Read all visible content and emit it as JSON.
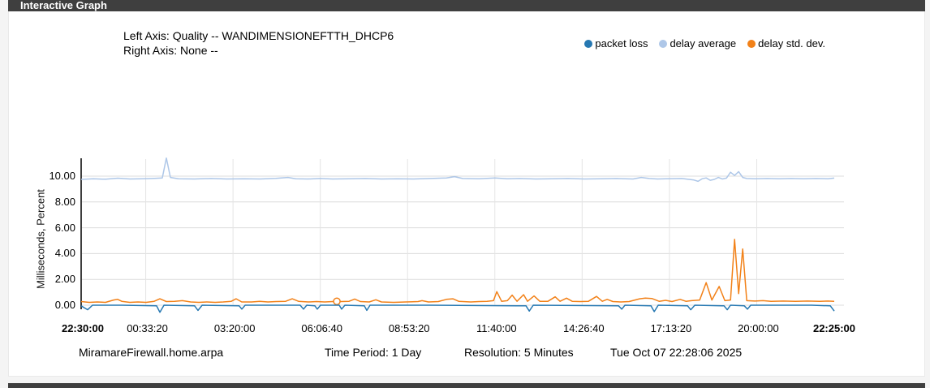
{
  "panel": {
    "title": "Interactive Graph"
  },
  "graph_header": {
    "left_axis": "Left Axis: Quality -- WANDIMENSIONEFTTH_DHCP6",
    "right_axis": "Right Axis: None --"
  },
  "legend": [
    {
      "label": "packet loss",
      "color": "#2678b2"
    },
    {
      "label": "delay average",
      "color": "#aec7e8"
    },
    {
      "label": "delay std. dev.",
      "color": "#f28118"
    }
  ],
  "footer": {
    "hostname": "MiramareFirewall.home.arpa",
    "time_period": "Time Period: 1 Day",
    "resolution": "Resolution: 5 Minutes",
    "timestamp": "Tue Oct 07 22:28:06 2025"
  },
  "chart_data": {
    "type": "line",
    "title": "Quality -- WANDIMENSIONEFTTH_DHCP6",
    "xlabel": "",
    "ylabel": "Milliseconds, Percent",
    "ylim": [
      0,
      11.3
    ],
    "grid": true,
    "legend_position": "top-right",
    "x_unit": "seconds since 22:30:00",
    "x_span_seconds": 86286,
    "yticks": [
      {
        "label": "0.00",
        "v": 0
      },
      {
        "label": "2.00",
        "v": 2
      },
      {
        "label": "4.00",
        "v": 4
      },
      {
        "label": "6.00",
        "v": 6
      },
      {
        "label": "8.00",
        "v": 8
      },
      {
        "label": "10.00",
        "v": 10
      }
    ],
    "xticks": [
      {
        "label": "22:30:00",
        "t": 0,
        "bold": true
      },
      {
        "label": "00:33:20",
        "t": 7400,
        "bold": false
      },
      {
        "label": "03:20:00",
        "t": 17400,
        "bold": false
      },
      {
        "label": "06:06:40",
        "t": 27400,
        "bold": false
      },
      {
        "label": "08:53:20",
        "t": 37400,
        "bold": false
      },
      {
        "label": "11:40:00",
        "t": 47400,
        "bold": false
      },
      {
        "label": "14:26:40",
        "t": 57400,
        "bold": false
      },
      {
        "label": "17:13:20",
        "t": 67400,
        "bold": false
      },
      {
        "label": "20:00:00",
        "t": 77400,
        "bold": false
      },
      {
        "label": "22:25:00",
        "t": 86100,
        "bold": true
      }
    ],
    "series": [
      {
        "name": "delay average",
        "color": "#aec7e8",
        "unit": "ms",
        "points": [
          [
            0,
            9.75
          ],
          [
            1400,
            9.8
          ],
          [
            2800,
            9.76
          ],
          [
            4200,
            9.84
          ],
          [
            5600,
            9.78
          ],
          [
            7000,
            9.8
          ],
          [
            8400,
            9.83
          ],
          [
            9300,
            9.86
          ],
          [
            9760,
            11.4
          ],
          [
            10230,
            9.9
          ],
          [
            11160,
            9.8
          ],
          [
            13000,
            9.78
          ],
          [
            14900,
            9.82
          ],
          [
            16700,
            9.78
          ],
          [
            18600,
            9.8
          ],
          [
            20500,
            9.78
          ],
          [
            22300,
            9.83
          ],
          [
            23700,
            9.9
          ],
          [
            24600,
            9.8
          ],
          [
            26000,
            9.78
          ],
          [
            27400,
            9.82
          ],
          [
            28800,
            9.78
          ],
          [
            30700,
            9.8
          ],
          [
            32550,
            9.82
          ],
          [
            34400,
            9.78
          ],
          [
            36270,
            9.8
          ],
          [
            38130,
            9.78
          ],
          [
            40000,
            9.82
          ],
          [
            41850,
            9.86
          ],
          [
            42780,
            9.96
          ],
          [
            43710,
            9.82
          ],
          [
            45570,
            9.8
          ],
          [
            47430,
            9.86
          ],
          [
            48825,
            9.8
          ],
          [
            50220,
            9.82
          ],
          [
            52080,
            9.78
          ],
          [
            53940,
            9.8
          ],
          [
            55800,
            9.82
          ],
          [
            57660,
            9.78
          ],
          [
            59520,
            9.8
          ],
          [
            61380,
            9.82
          ],
          [
            63240,
            9.78
          ],
          [
            64170,
            9.9
          ],
          [
            65100,
            9.82
          ],
          [
            66030,
            9.78
          ],
          [
            66960,
            9.8
          ],
          [
            68820,
            9.82
          ],
          [
            70215,
            9.7
          ],
          [
            70680,
            9.6
          ],
          [
            71145,
            9.8
          ],
          [
            71610,
            9.86
          ],
          [
            72075,
            9.68
          ],
          [
            72540,
            9.75
          ],
          [
            73005,
            9.9
          ],
          [
            73470,
            9.78
          ],
          [
            73935,
            9.85
          ],
          [
            74400,
            10.3
          ],
          [
            74865,
            10.05
          ],
          [
            75330,
            10.35
          ],
          [
            75795,
            9.9
          ],
          [
            76260,
            9.82
          ],
          [
            77190,
            9.8
          ],
          [
            78585,
            9.82
          ],
          [
            79980,
            9.8
          ],
          [
            81375,
            9.82
          ],
          [
            82770,
            9.8
          ],
          [
            84165,
            9.82
          ],
          [
            85560,
            9.8
          ],
          [
            86286,
            9.85
          ]
        ]
      },
      {
        "name": "delay std. dev.",
        "color": "#f28118",
        "unit": "ms",
        "marker": {
          "t": 29295,
          "v": 0.3
        },
        "points": [
          [
            0,
            0.28
          ],
          [
            930,
            0.22
          ],
          [
            1860,
            0.25
          ],
          [
            2790,
            0.22
          ],
          [
            3720,
            0.4
          ],
          [
            4185,
            0.45
          ],
          [
            4650,
            0.3
          ],
          [
            5580,
            0.22
          ],
          [
            6510,
            0.25
          ],
          [
            7440,
            0.22
          ],
          [
            8370,
            0.3
          ],
          [
            9020,
            0.5
          ],
          [
            9765,
            0.28
          ],
          [
            10700,
            0.3
          ],
          [
            11600,
            0.35
          ],
          [
            12550,
            0.25
          ],
          [
            13480,
            0.22
          ],
          [
            14400,
            0.25
          ],
          [
            15350,
            0.22
          ],
          [
            16270,
            0.25
          ],
          [
            17200,
            0.3
          ],
          [
            17760,
            0.5
          ],
          [
            18400,
            0.25
          ],
          [
            19530,
            0.25
          ],
          [
            20460,
            0.3
          ],
          [
            21400,
            0.25
          ],
          [
            22320,
            0.28
          ],
          [
            23430,
            0.3
          ],
          [
            24180,
            0.5
          ],
          [
            24900,
            0.3
          ],
          [
            26040,
            0.25
          ],
          [
            26970,
            0.28
          ],
          [
            27900,
            0.25
          ],
          [
            28830,
            0.28
          ],
          [
            29760,
            0.28
          ],
          [
            30690,
            0.3
          ],
          [
            31340,
            0.48
          ],
          [
            31990,
            0.28
          ],
          [
            33010,
            0.25
          ],
          [
            33760,
            0.42
          ],
          [
            34410,
            0.25
          ],
          [
            35800,
            0.22
          ],
          [
            37200,
            0.25
          ],
          [
            38600,
            0.28
          ],
          [
            39060,
            0.35
          ],
          [
            39800,
            0.25
          ],
          [
            40920,
            0.28
          ],
          [
            41850,
            0.45
          ],
          [
            42590,
            0.5
          ],
          [
            43250,
            0.3
          ],
          [
            44640,
            0.25
          ],
          [
            45570,
            0.28
          ],
          [
            46500,
            0.3
          ],
          [
            47240,
            0.35
          ],
          [
            47620,
            1.05
          ],
          [
            48170,
            0.3
          ],
          [
            48830,
            0.35
          ],
          [
            49380,
            0.78
          ],
          [
            49940,
            0.3
          ],
          [
            50690,
            0.82
          ],
          [
            51150,
            0.3
          ],
          [
            51890,
            0.72
          ],
          [
            52550,
            0.3
          ],
          [
            53480,
            0.3
          ],
          [
            54310,
            0.65
          ],
          [
            54870,
            0.3
          ],
          [
            55610,
            0.55
          ],
          [
            56260,
            0.3
          ],
          [
            57190,
            0.28
          ],
          [
            58120,
            0.3
          ],
          [
            59050,
            0.68
          ],
          [
            59710,
            0.3
          ],
          [
            60270,
            0.45
          ],
          [
            60920,
            0.28
          ],
          [
            61850,
            0.25
          ],
          [
            62780,
            0.28
          ],
          [
            63990,
            0.5
          ],
          [
            64640,
            0.55
          ],
          [
            65380,
            0.52
          ],
          [
            66220,
            0.3
          ],
          [
            66960,
            0.38
          ],
          [
            67700,
            0.28
          ],
          [
            68630,
            0.45
          ],
          [
            69290,
            0.3
          ],
          [
            69940,
            0.35
          ],
          [
            70870,
            0.4
          ],
          [
            71610,
            1.75
          ],
          [
            72260,
            0.4
          ],
          [
            73100,
            1.45
          ],
          [
            73750,
            0.35
          ],
          [
            74400,
            0.4
          ],
          [
            74865,
            5.1
          ],
          [
            75330,
            0.9
          ],
          [
            75800,
            4.35
          ],
          [
            76260,
            0.35
          ],
          [
            77190,
            0.32
          ],
          [
            78120,
            0.35
          ],
          [
            79050,
            0.3
          ],
          [
            80440,
            0.32
          ],
          [
            81840,
            0.3
          ],
          [
            83230,
            0.32
          ],
          [
            84630,
            0.3
          ],
          [
            85560,
            0.32
          ],
          [
            86286,
            0.3
          ]
        ]
      },
      {
        "name": "packet loss",
        "color": "#2678b2",
        "unit": "%",
        "points": [
          [
            0,
            -0.05
          ],
          [
            740,
            -0.35
          ],
          [
            1300,
            0
          ],
          [
            4650,
            0
          ],
          [
            8650,
            -0.05
          ],
          [
            9020,
            -0.55
          ],
          [
            9490,
            0
          ],
          [
            13000,
            -0.05
          ],
          [
            13390,
            -0.4
          ],
          [
            13860,
            0
          ],
          [
            18100,
            -0.05
          ],
          [
            18410,
            -0.3
          ],
          [
            18790,
            0
          ],
          [
            25100,
            0
          ],
          [
            25480,
            -0.3
          ],
          [
            25850,
            0
          ],
          [
            26780,
            -0.05
          ],
          [
            27060,
            -0.3
          ],
          [
            27430,
            0
          ],
          [
            29570,
            0
          ],
          [
            29850,
            -0.3
          ],
          [
            30220,
            0
          ],
          [
            32450,
            -0.05
          ],
          [
            32730,
            -0.4
          ],
          [
            33100,
            0
          ],
          [
            40000,
            0
          ],
          [
            50970,
            -0.05
          ],
          [
            51340,
            -0.45
          ],
          [
            51800,
            0
          ],
          [
            61570,
            -0.05
          ],
          [
            61940,
            -0.3
          ],
          [
            62310,
            0
          ],
          [
            65290,
            -0.05
          ],
          [
            65660,
            -0.5
          ],
          [
            66120,
            0
          ],
          [
            69480,
            -0.05
          ],
          [
            69850,
            -0.35
          ],
          [
            70310,
            0
          ],
          [
            73660,
            -0.05
          ],
          [
            74030,
            -0.35
          ],
          [
            74400,
            0
          ],
          [
            75980,
            -0.05
          ],
          [
            76350,
            -0.3
          ],
          [
            76720,
            0
          ],
          [
            83700,
            0
          ],
          [
            85840,
            -0.05
          ],
          [
            86286,
            -0.45
          ]
        ]
      }
    ]
  }
}
